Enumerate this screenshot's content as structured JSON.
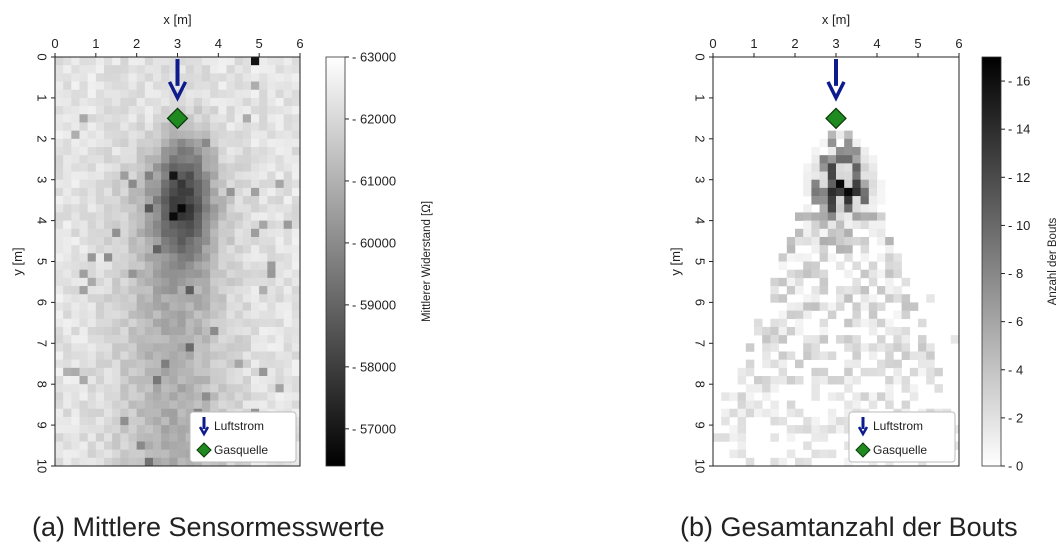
{
  "captions": {
    "a": "(a) Mittlere Sensormesswerte",
    "b": "(b) Gesamtanzahl der Bouts"
  },
  "chart_data": [
    {
      "type": "heatmap",
      "xlabel": "x [m]",
      "ylabel": "y [m]",
      "xlim": [
        0,
        6
      ],
      "ylim": [
        10,
        0
      ],
      "xticks": [
        "0",
        "1",
        "2",
        "3",
        "4",
        "5",
        "6"
      ],
      "yticks": [
        "0",
        "1",
        "2",
        "3",
        "4",
        "5",
        "6",
        "7",
        "8",
        "9",
        "10"
      ],
      "grid": false,
      "colormap": "gray_r",
      "colorbar": {
        "label": "Mittlerer Widerstand [Ω]",
        "range": [
          56400,
          63000
        ],
        "ticks": [
          "63000",
          "62000",
          "61000",
          "60000",
          "59000",
          "58000",
          "57000"
        ]
      },
      "cell_size_m": [
        0.2,
        0.2
      ],
      "description_values": "mean sensor resistance per 0.2 m cell; darkest (≈58000–59500) in plume below source, x 2.5–3.8, y 2–5; background ≈61500–63000",
      "source": {
        "x": 3.0,
        "y": 1.5
      },
      "airflow": {
        "x": 3.0,
        "y_from": 0.05,
        "y_to": 0.95
      },
      "legend": {
        "placement": "lower-right",
        "entries": [
          {
            "label": "Luftstrom",
            "marker": "arrow-down",
            "color": "#0d1b8c"
          },
          {
            "label": "Gasquelle",
            "marker": "diamond",
            "color": "#1f8a1f"
          }
        ]
      }
    },
    {
      "type": "heatmap",
      "xlabel": "x [m]",
      "ylabel": "y [m]",
      "xlim": [
        0,
        6
      ],
      "ylim": [
        10,
        0
      ],
      "xticks": [
        "0",
        "1",
        "2",
        "3",
        "4",
        "5",
        "6"
      ],
      "yticks": [
        "0",
        "1",
        "2",
        "3",
        "4",
        "5",
        "6",
        "7",
        "8",
        "9",
        "10"
      ],
      "grid": false,
      "colormap": "gray_r",
      "colorbar": {
        "label": "Anzahl der Bouts",
        "range": [
          0,
          17
        ],
        "ticks": [
          "16",
          "14",
          "12",
          "10",
          "8",
          "6",
          "4",
          "2",
          "0"
        ]
      },
      "cell_size_m": [
        0.2,
        0.2
      ],
      "description_values": "total bout count per cell; maximum ≈16–17 at x≈2.8–3.6, y≈2.7–3.9; decreasing plume fanning out downstream to y≈10",
      "source": {
        "x": 3.0,
        "y": 1.5
      },
      "airflow": {
        "x": 3.0,
        "y_from": 0.05,
        "y_to": 0.95
      },
      "legend": {
        "placement": "lower-right",
        "entries": [
          {
            "label": "Luftstrom",
            "marker": "arrow-down",
            "color": "#0d1b8c"
          },
          {
            "label": "Gasquelle",
            "marker": "diamond",
            "color": "#1f8a1f"
          }
        ]
      }
    }
  ]
}
